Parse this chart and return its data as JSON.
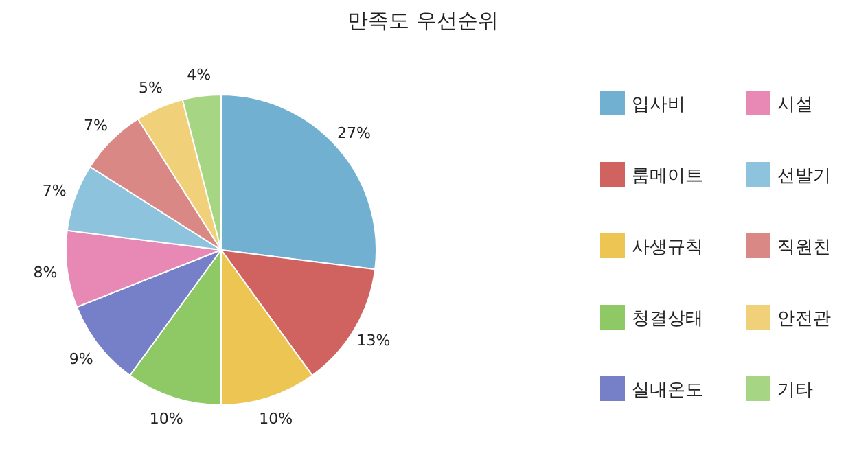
{
  "chart_data": {
    "type": "pie",
    "title": "만족도 우선순위",
    "categories": [
      "입사비",
      "룸메이트",
      "사생규칙",
      "청결상태",
      "실내온도",
      "시설",
      "선발기",
      "직원친",
      "안전관",
      "기타"
    ],
    "values": [
      27,
      13,
      10,
      10,
      9,
      8,
      7,
      7,
      5,
      4
    ],
    "value_labels": [
      "27%",
      "13%",
      "10%",
      "10%",
      "9%",
      "8%",
      "7%",
      "7%",
      "5%",
      "4%"
    ],
    "colors": [
      "#72b0d2",
      "#d0625f",
      "#ecc553",
      "#8fc965",
      "#7580c8",
      "#e888b4",
      "#8ec3de",
      "#d98886",
      "#f0d078",
      "#a6d584"
    ],
    "legend": "right"
  }
}
